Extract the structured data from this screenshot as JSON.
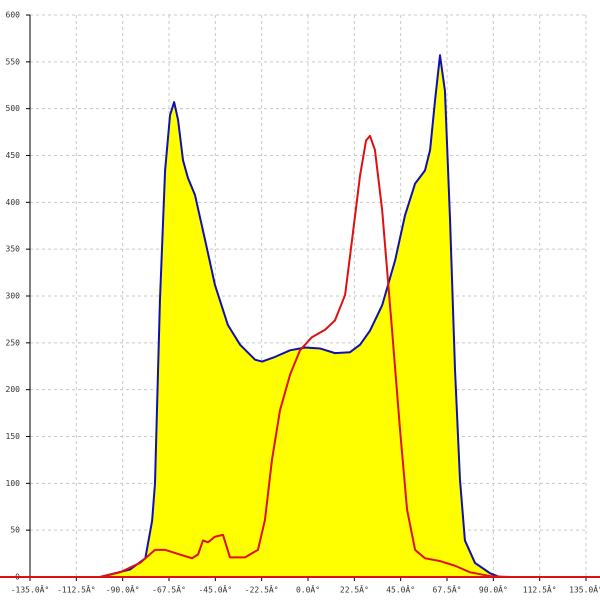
{
  "chart_data": {
    "type": "area",
    "xlim": [
      -135,
      135
    ],
    "ylim": [
      0,
      600
    ],
    "xticks": [
      {
        "value": -135,
        "label": "-135.0Â°"
      },
      {
        "value": -112.5,
        "label": "-112.5Â°"
      },
      {
        "value": -90,
        "label": "-90.0Â°"
      },
      {
        "value": -67.5,
        "label": "-67.5Â°"
      },
      {
        "value": -45,
        "label": "-45.0Â°"
      },
      {
        "value": -22.5,
        "label": "-22.5Â°"
      },
      {
        "value": 0,
        "label": "0.0Â°"
      },
      {
        "value": 22.5,
        "label": "22.5Â°"
      },
      {
        "value": 45,
        "label": "45.0Â°"
      },
      {
        "value": 67.5,
        "label": "67.5Â°"
      },
      {
        "value": 90,
        "label": "90.0Â°"
      },
      {
        "value": 112.5,
        "label": "112.5Â°"
      },
      {
        "value": 135,
        "label": "135.0Â°"
      }
    ],
    "yticks": [
      0,
      50,
      100,
      150,
      200,
      250,
      300,
      350,
      400,
      450,
      500,
      550,
      600
    ],
    "grid": true,
    "series": [
      {
        "color": "#1010b0",
        "fill": "#ffff00",
        "x": [
          -135,
          -101,
          -86.4,
          -79,
          -75.7,
          -74.3,
          -71.9,
          -69.4,
          -67,
          -65,
          -63.1,
          -60.7,
          -58.3,
          -54.9,
          -50,
          -45.2,
          -38.9,
          -33,
          -25.7,
          -22.3,
          -16,
          -8.7,
          -1.5,
          5.8,
          13.1,
          20.4,
          25.3,
          30.1,
          36,
          42.3,
          47.1,
          52,
          56.8,
          59.3,
          61.7,
          64.1,
          66.5,
          69,
          71.4,
          73.8,
          76.2,
          81.1,
          88.4,
          93.2,
          135
        ],
        "values": [
          0,
          0,
          8,
          20,
          60,
          100,
          295,
          434,
          493,
          507,
          488,
          445,
          426,
          408,
          360,
          312,
          269,
          248,
          232,
          230,
          235,
          242,
          245,
          244,
          239,
          240,
          248,
          263,
          290,
          338,
          386,
          420,
          434,
          456,
          509,
          557,
          519,
          380,
          221,
          104,
          39,
          15,
          4,
          0,
          0
        ]
      },
      {
        "color": "#e01010",
        "x": [
          -135,
          -101,
          -91.3,
          -81.6,
          -74.3,
          -69.4,
          -62.2,
          -56.3,
          -53.4,
          -51,
          -48.6,
          -45.2,
          -41.3,
          -37.9,
          -30.6,
          -24.3,
          -20.9,
          -17.5,
          -13.6,
          -8.7,
          -3.9,
          1.9,
          8.3,
          13.1,
          18,
          21.4,
          25.3,
          28.2,
          30.1,
          32.5,
          36,
          40.8,
          44.7,
          48.1,
          52,
          56.8,
          64.1,
          71.4,
          78.7,
          88.4,
          98.1,
          135
        ],
        "values": [
          0,
          0,
          5,
          15,
          29,
          29,
          24,
          20,
          24,
          39,
          37,
          43,
          45,
          21,
          21,
          29,
          61,
          125,
          178,
          216,
          242,
          256,
          264,
          274,
          301,
          360,
          429,
          466,
          471,
          456,
          392,
          264,
          157,
          72,
          29,
          20,
          17,
          12,
          5,
          1,
          0,
          0
        ]
      }
    ]
  }
}
